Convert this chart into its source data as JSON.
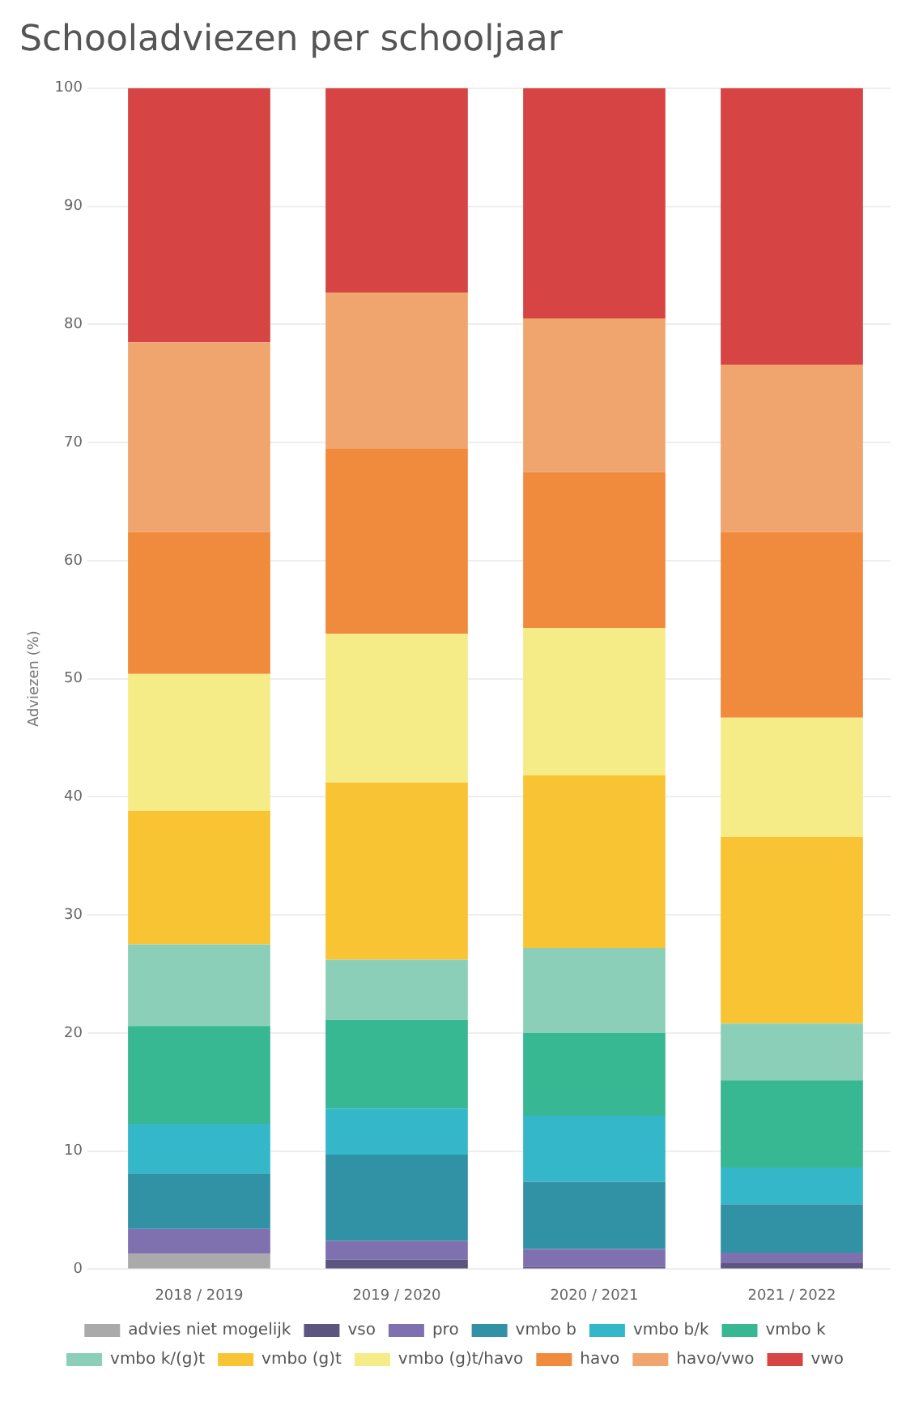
{
  "chart_data": {
    "type": "bar",
    "title": "Schooladviezen per schooljaar",
    "ylabel": "Adviezen (%)",
    "categories": [
      "2018 / 2019",
      "2019 / 2020",
      "2020 / 2021",
      "2021 / 2022"
    ],
    "stacked": true,
    "ylim": [
      0,
      100
    ],
    "yticks": [
      0,
      10,
      20,
      30,
      40,
      50,
      60,
      70,
      80,
      90,
      100
    ],
    "grid": "y",
    "legend": "bottom",
    "series": [
      {
        "name": "advies niet mogelijk",
        "color": "#aaaaaa",
        "values": [
          1.3,
          0,
          0,
          0
        ]
      },
      {
        "name": "vso",
        "color": "#5c5580",
        "values": [
          0,
          0.8,
          0.2,
          0.5
        ]
      },
      {
        "name": "pro",
        "color": "#7f70b0",
        "values": [
          2.1,
          1.6,
          1.5,
          0.9
        ]
      },
      {
        "name": "vmbo b",
        "color": "#3192a6",
        "values": [
          4.7,
          7.3,
          5.7,
          4.1
        ]
      },
      {
        "name": "vmbo b/k",
        "color": "#34b8c9",
        "values": [
          4.2,
          3.9,
          5.6,
          3.1
        ]
      },
      {
        "name": "vmbo k",
        "color": "#37b792",
        "values": [
          8.3,
          7.5,
          7.0,
          7.4
        ]
      },
      {
        "name": "vmbo k/(g)t",
        "color": "#8bcfb9",
        "values": [
          6.9,
          5.1,
          7.2,
          4.8
        ]
      },
      {
        "name": "vmbo (g)t",
        "color": "#f9c433",
        "values": [
          11.3,
          15.0,
          14.6,
          15.8
        ]
      },
      {
        "name": "vmbo (g)t/havo",
        "color": "#f5ec88",
        "values": [
          11.6,
          12.6,
          12.5,
          10.1
        ]
      },
      {
        "name": "havo",
        "color": "#f08a3c",
        "values": [
          12.0,
          15.7,
          13.2,
          15.7
        ]
      },
      {
        "name": "havo/vwo",
        "color": "#f0a56f",
        "values": [
          16.1,
          13.2,
          13.0,
          14.2
        ]
      },
      {
        "name": "vwo",
        "color": "#d64444",
        "values": [
          21.5,
          17.3,
          19.5,
          23.4
        ]
      }
    ]
  }
}
